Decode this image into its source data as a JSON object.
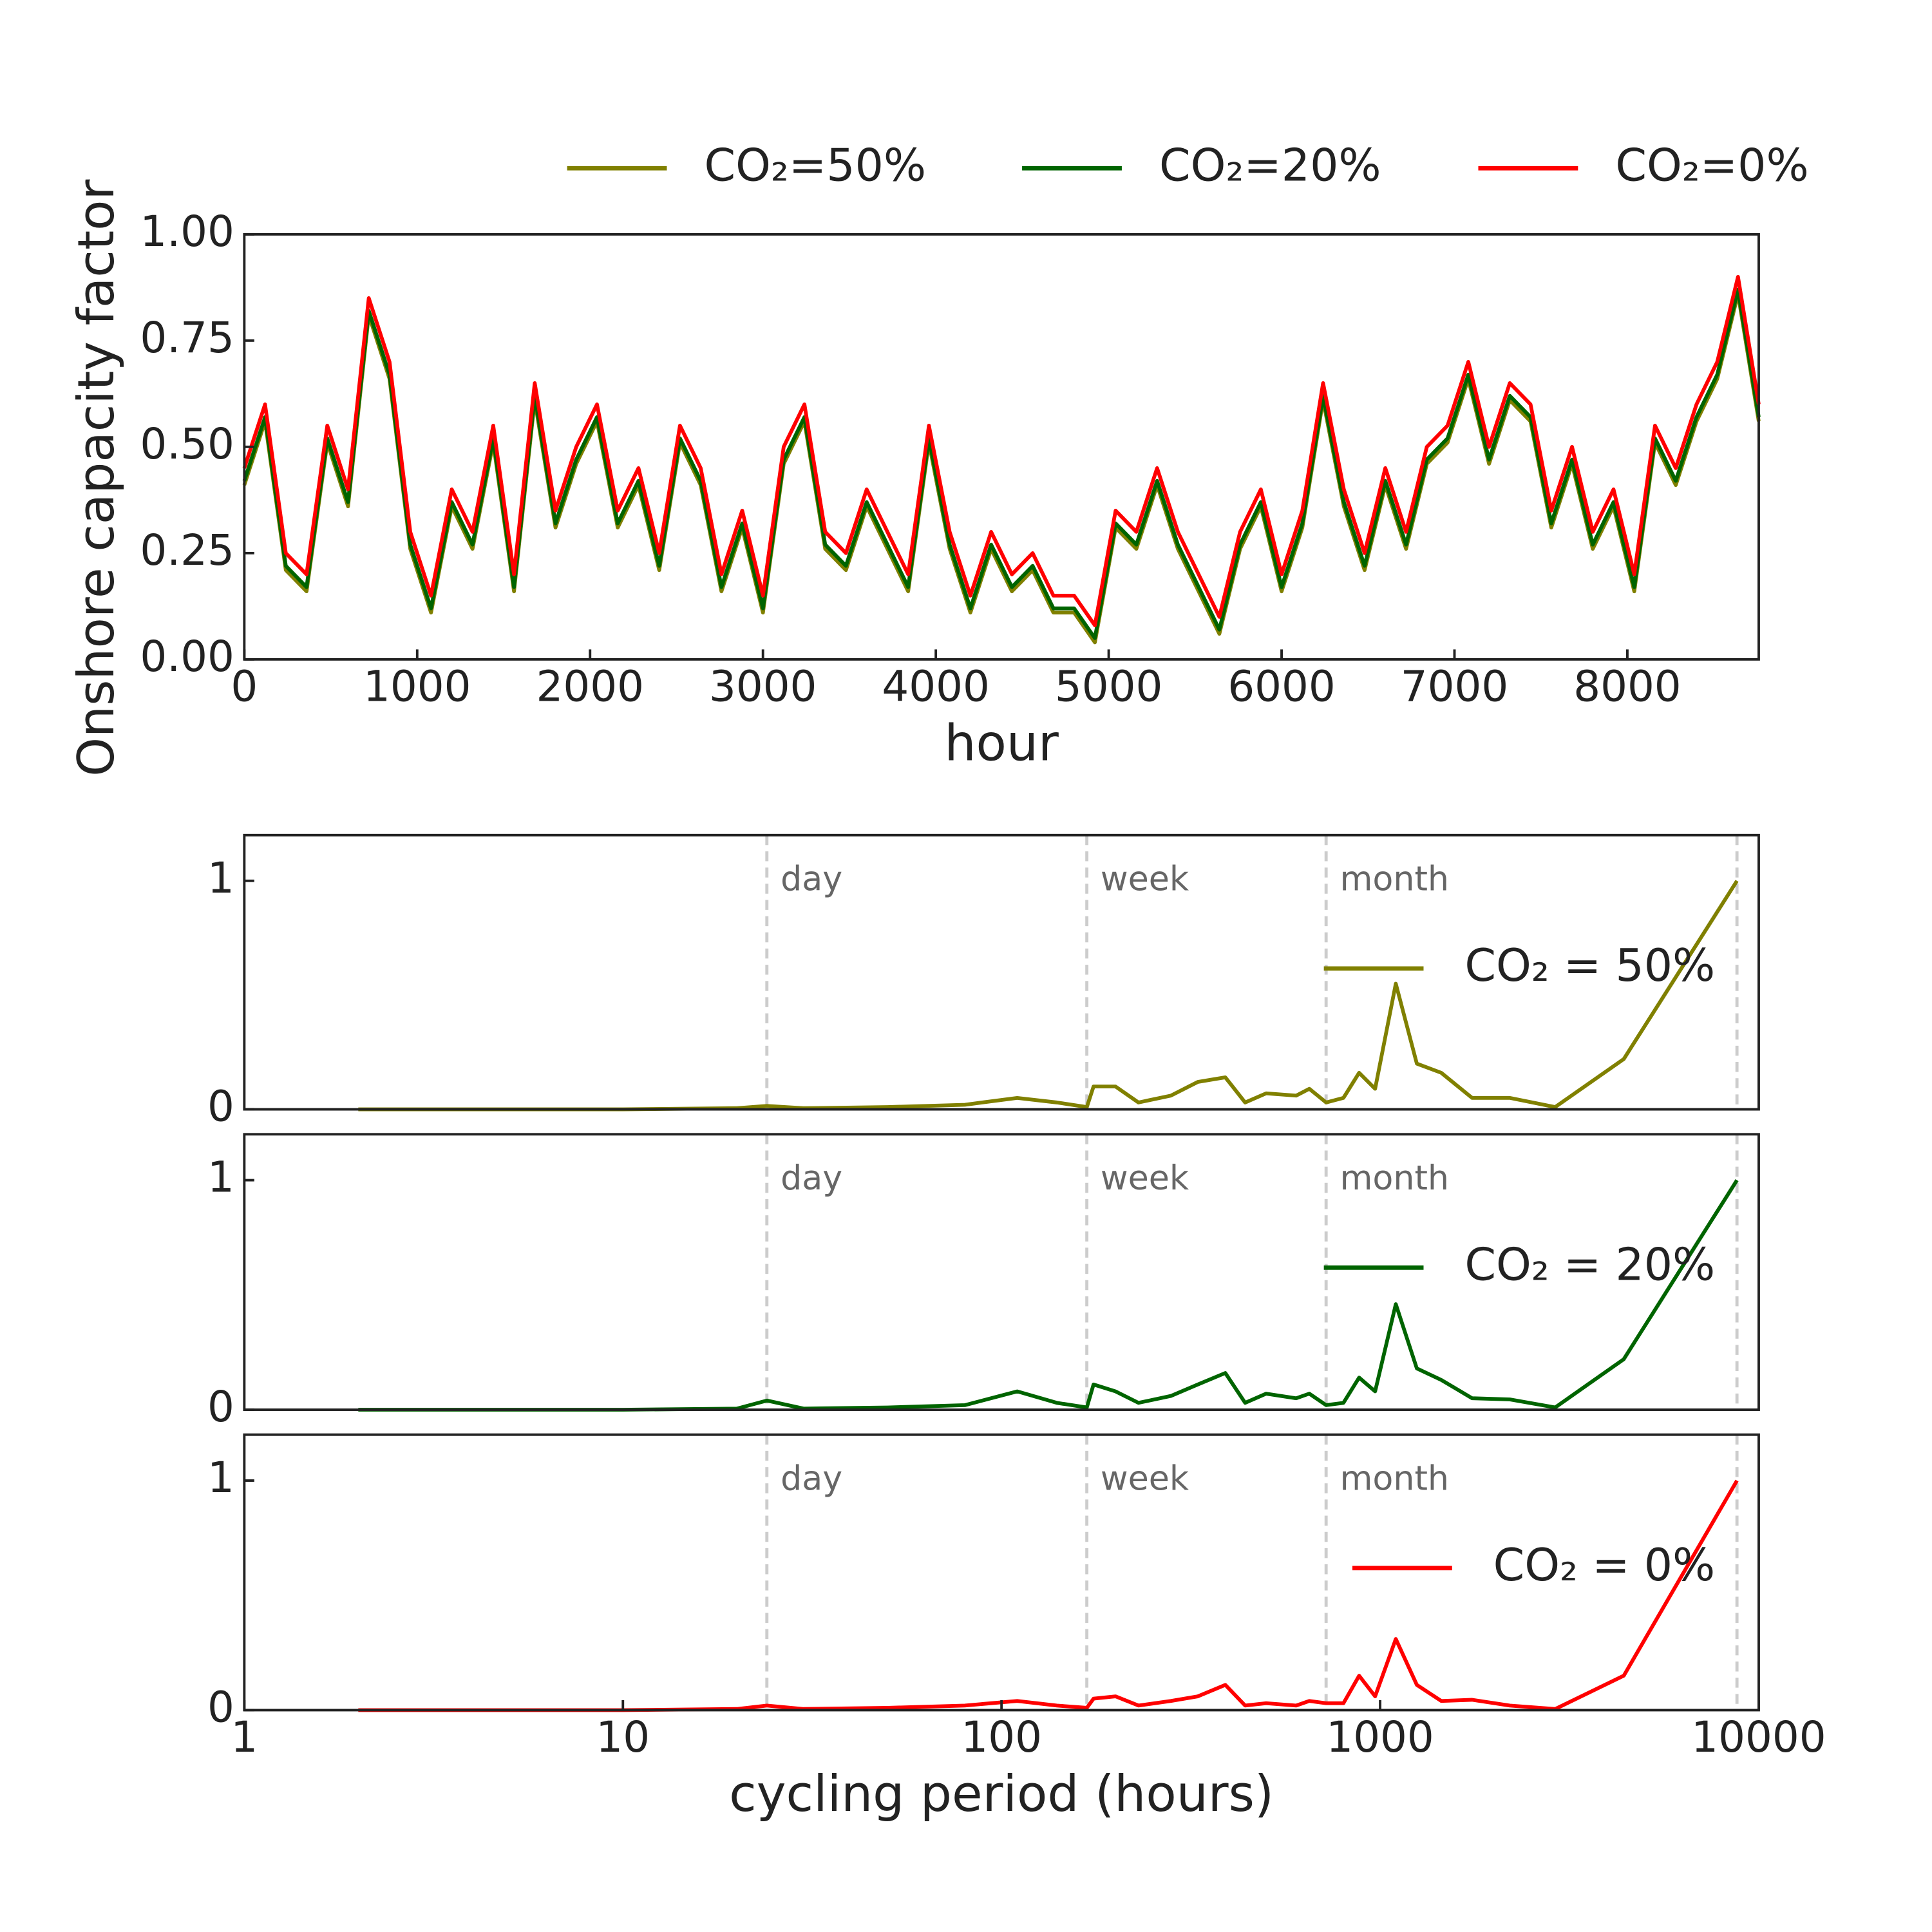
{
  "chart_data": [
    {
      "type": "line",
      "xlabel": "hour",
      "ylabel": "Onshore capacity factor",
      "legend": "top",
      "xlim": [
        0,
        8760
      ],
      "ylim": [
        0,
        1
      ],
      "xticks": [
        0,
        1000,
        2000,
        3000,
        4000,
        5000,
        6000,
        7000,
        8000
      ],
      "yticks": [
        {
          "value": 0,
          "label": "0.00"
        },
        {
          "value": 0.25,
          "label": "0.25"
        },
        {
          "value": 0.5,
          "label": "0.50"
        },
        {
          "value": 0.75,
          "label": "0.75"
        },
        {
          "value": 1,
          "label": "1.00"
        }
      ],
      "x": [
        0,
        120,
        240,
        360,
        480,
        600,
        720,
        840,
        960,
        1080,
        1200,
        1320,
        1440,
        1560,
        1680,
        1800,
        1920,
        2040,
        2160,
        2280,
        2400,
        2520,
        2640,
        2760,
        2880,
        3000,
        3120,
        3240,
        3360,
        3480,
        3600,
        3720,
        3840,
        3960,
        4080,
        4200,
        4320,
        4440,
        4560,
        4680,
        4800,
        4920,
        5040,
        5160,
        5280,
        5400,
        5520,
        5640,
        5760,
        5880,
        6000,
        6120,
        6240,
        6360,
        6480,
        6600,
        6720,
        6840,
        6960,
        7080,
        7200,
        7320,
        7440,
        7560,
        7680,
        7800,
        7920,
        8040,
        8160,
        8280,
        8400,
        8520,
        8640,
        8760
      ],
      "series": [
        {
          "name": "CO₂=50%",
          "color": "#808000",
          "values": [
            0.41,
            0.56,
            0.21,
            0.16,
            0.51,
            0.36,
            0.81,
            0.66,
            0.26,
            0.11,
            0.36,
            0.26,
            0.51,
            0.16,
            0.61,
            0.31,
            0.46,
            0.56,
            0.31,
            0.41,
            0.21,
            0.51,
            0.41,
            0.16,
            0.31,
            0.11,
            0.46,
            0.56,
            0.26,
            0.21,
            0.36,
            0.26,
            0.16,
            0.51,
            0.26,
            0.11,
            0.26,
            0.16,
            0.21,
            0.11,
            0.11,
            0.04,
            0.31,
            0.26,
            0.41,
            0.26,
            0.16,
            0.06,
            0.26,
            0.36,
            0.16,
            0.31,
            0.61,
            0.36,
            0.21,
            0.41,
            0.26,
            0.46,
            0.51,
            0.66,
            0.46,
            0.61,
            0.56,
            0.31,
            0.46,
            0.26,
            0.36,
            0.16,
            0.51,
            0.41,
            0.56,
            0.66,
            0.86,
            0.56
          ]
        },
        {
          "name": "CO₂=20%",
          "color": "#006400",
          "values": [
            0.42,
            0.57,
            0.22,
            0.17,
            0.52,
            0.37,
            0.82,
            0.67,
            0.27,
            0.12,
            0.37,
            0.27,
            0.52,
            0.17,
            0.62,
            0.32,
            0.47,
            0.57,
            0.32,
            0.42,
            0.22,
            0.52,
            0.42,
            0.17,
            0.32,
            0.12,
            0.47,
            0.57,
            0.27,
            0.22,
            0.37,
            0.27,
            0.17,
            0.52,
            0.27,
            0.12,
            0.27,
            0.17,
            0.22,
            0.12,
            0.12,
            0.05,
            0.32,
            0.27,
            0.42,
            0.27,
            0.17,
            0.07,
            0.27,
            0.37,
            0.17,
            0.32,
            0.62,
            0.37,
            0.22,
            0.42,
            0.27,
            0.47,
            0.52,
            0.67,
            0.47,
            0.62,
            0.57,
            0.32,
            0.47,
            0.27,
            0.37,
            0.17,
            0.52,
            0.42,
            0.57,
            0.67,
            0.87,
            0.57
          ]
        },
        {
          "name": "CO₂=0%",
          "color": "#ff0000",
          "values": [
            0.45,
            0.6,
            0.25,
            0.2,
            0.55,
            0.4,
            0.85,
            0.7,
            0.3,
            0.15,
            0.4,
            0.3,
            0.55,
            0.2,
            0.65,
            0.35,
            0.5,
            0.6,
            0.35,
            0.45,
            0.25,
            0.55,
            0.45,
            0.2,
            0.35,
            0.15,
            0.5,
            0.6,
            0.3,
            0.25,
            0.4,
            0.3,
            0.2,
            0.55,
            0.3,
            0.15,
            0.3,
            0.2,
            0.25,
            0.15,
            0.15,
            0.08,
            0.35,
            0.3,
            0.45,
            0.3,
            0.2,
            0.1,
            0.3,
            0.4,
            0.2,
            0.35,
            0.65,
            0.4,
            0.25,
            0.45,
            0.3,
            0.5,
            0.55,
            0.7,
            0.5,
            0.65,
            0.6,
            0.35,
            0.5,
            0.3,
            0.4,
            0.2,
            0.55,
            0.45,
            0.6,
            0.7,
            0.9,
            0.6
          ]
        }
      ]
    },
    {
      "type": "line",
      "xscale": "log",
      "legend": "right",
      "xlim": [
        1,
        10000
      ],
      "ylim": [
        0,
        1.2
      ],
      "yticks": [
        0,
        1
      ],
      "annotations": [
        {
          "x": 24,
          "text": "day"
        },
        {
          "x": 168,
          "text": "week"
        },
        {
          "x": 720,
          "text": "month"
        },
        {
          "x": 8760
        }
      ],
      "x": [
        2,
        5,
        10,
        20,
        24,
        30,
        50,
        80,
        110,
        140,
        168,
        175,
        200,
        230,
        280,
        330,
        390,
        440,
        500,
        600,
        650,
        720,
        800,
        880,
        970,
        1100,
        1250,
        1450,
        1750,
        2200,
        2900,
        4400,
        8760
      ],
      "series": [
        {
          "name": "CO₂ = 50%",
          "color": "#808000",
          "values": [
            0,
            0,
            0,
            0.005,
            0.015,
            0.005,
            0.01,
            0.02,
            0.05,
            0.03,
            0.01,
            0.1,
            0.1,
            0.03,
            0.06,
            0.12,
            0.14,
            0.03,
            0.07,
            0.06,
            0.09,
            0.03,
            0.05,
            0.16,
            0.09,
            0.55,
            0.2,
            0.16,
            0.05,
            0.05,
            0.01,
            0.22,
            1
          ]
        }
      ]
    },
    {
      "type": "line",
      "xscale": "log",
      "legend": "right",
      "xlim": [
        1,
        10000
      ],
      "ylim": [
        0,
        1.2
      ],
      "yticks": [
        0,
        1
      ],
      "annotations": [
        {
          "x": 24,
          "text": "day"
        },
        {
          "x": 168,
          "text": "week"
        },
        {
          "x": 720,
          "text": "month"
        },
        {
          "x": 8760
        }
      ],
      "x": [
        2,
        5,
        10,
        20,
        24,
        30,
        50,
        80,
        110,
        140,
        168,
        175,
        200,
        230,
        280,
        330,
        390,
        440,
        500,
        600,
        650,
        720,
        800,
        880,
        970,
        1100,
        1250,
        1450,
        1750,
        2200,
        2900,
        4400,
        8760
      ],
      "series": [
        {
          "name": "CO₂ = 20%",
          "color": "#006400",
          "values": [
            0,
            0,
            0,
            0.005,
            0.04,
            0.005,
            0.01,
            0.02,
            0.08,
            0.03,
            0.01,
            0.11,
            0.08,
            0.03,
            0.06,
            0.11,
            0.16,
            0.03,
            0.07,
            0.05,
            0.07,
            0.02,
            0.03,
            0.14,
            0.08,
            0.46,
            0.18,
            0.13,
            0.05,
            0.045,
            0.01,
            0.22,
            1
          ]
        }
      ]
    },
    {
      "type": "line",
      "xscale": "log",
      "legend": "right",
      "xlabel": "cycling period (hours)",
      "xlim": [
        1,
        10000
      ],
      "ylim": [
        0,
        1.2
      ],
      "yticks": [
        0,
        1
      ],
      "xticks": [
        1,
        10,
        100,
        1000,
        10000
      ],
      "annotations": [
        {
          "x": 24,
          "text": "day"
        },
        {
          "x": 168,
          "text": "week"
        },
        {
          "x": 720,
          "text": "month"
        },
        {
          "x": 8760
        }
      ],
      "x": [
        2,
        5,
        10,
        20,
        24,
        30,
        50,
        80,
        110,
        140,
        168,
        175,
        200,
        230,
        280,
        330,
        390,
        440,
        500,
        600,
        650,
        720,
        800,
        880,
        970,
        1100,
        1250,
        1450,
        1750,
        2200,
        2900,
        4400,
        8760
      ],
      "series": [
        {
          "name": "CO₂ = 0%",
          "color": "#ff0000",
          "values": [
            0,
            0,
            0,
            0.005,
            0.02,
            0.005,
            0.01,
            0.02,
            0.04,
            0.02,
            0.01,
            0.05,
            0.06,
            0.02,
            0.04,
            0.06,
            0.11,
            0.02,
            0.03,
            0.02,
            0.04,
            0.03,
            0.03,
            0.15,
            0.06,
            0.31,
            0.11,
            0.04,
            0.045,
            0.02,
            0.005,
            0.15,
            1
          ]
        }
      ]
    }
  ]
}
